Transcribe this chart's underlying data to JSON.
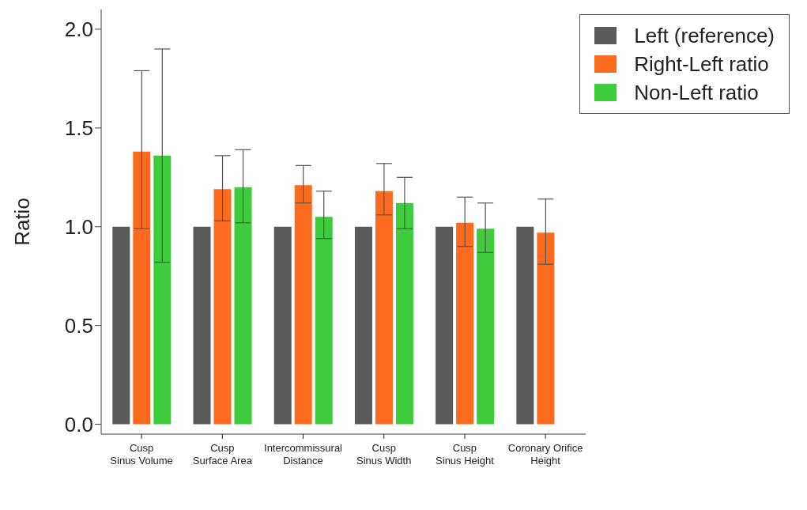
{
  "chart_data": {
    "type": "bar",
    "ylabel": "Ratio",
    "categories": [
      "Cusp\nSinus Volume",
      "Cusp\nSurface Area",
      "Intercommissural\nDistance",
      "Cusp\nSinus Width",
      "Cusp\nSinus Height",
      "Coronary Orifice\nHeight"
    ],
    "series": [
      {
        "name": "Left (reference)",
        "color": "#5a5a5a",
        "values": [
          1.0,
          1.0,
          1.0,
          1.0,
          1.0,
          1.0
        ]
      },
      {
        "name": "Right-Left ratio",
        "color": "#fc6a1e",
        "values": [
          1.38,
          1.19,
          1.21,
          1.18,
          1.02,
          0.97
        ],
        "errors": [
          [
            0.99,
            1.79
          ],
          [
            1.03,
            1.36
          ],
          [
            1.12,
            1.31
          ],
          [
            1.06,
            1.32
          ],
          [
            0.9,
            1.15
          ],
          [
            0.81,
            1.14
          ]
        ]
      },
      {
        "name": "Non-Left ratio",
        "color": "#3ccc3c",
        "values": [
          1.36,
          1.2,
          1.05,
          1.12,
          0.99,
          null
        ],
        "errors": [
          [
            0.82,
            1.9
          ],
          [
            1.02,
            1.39
          ],
          [
            0.94,
            1.18
          ],
          [
            0.99,
            1.25
          ],
          [
            0.87,
            1.12
          ],
          null
        ]
      }
    ],
    "ylim": [
      -0.05,
      2.1
    ],
    "yticks": [
      {
        "value": 0,
        "label": "0.0"
      },
      {
        "value": 0.5,
        "label": "0.5"
      },
      {
        "value": 1,
        "label": "1.0"
      },
      {
        "value": 1.5,
        "label": "1.5"
      },
      {
        "value": 2,
        "label": "2.0"
      }
    ],
    "grid": false,
    "legend": "top right"
  }
}
